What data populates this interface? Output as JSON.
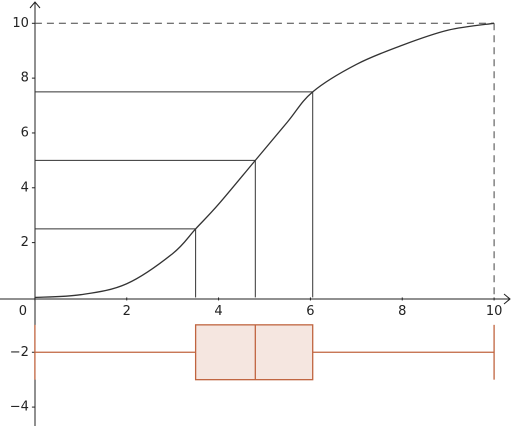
{
  "chart_data": {
    "type": "cumulative-boxplot",
    "xlim": [
      -0.76,
      10.39
    ],
    "ylim": [
      -4.69,
      10.85
    ],
    "xticks": [
      0,
      2,
      4,
      6,
      8,
      10
    ],
    "yticks": [
      {
        "value": -4,
        "label": "−4"
      },
      {
        "value": -2,
        "label": "−2"
      },
      2,
      4,
      6,
      8,
      10
    ],
    "curve": {
      "color": "#333333",
      "x": [
        0,
        1,
        2,
        3,
        3.5,
        4,
        4.8,
        5.5,
        6.05,
        7,
        8,
        9,
        10
      ],
      "y": [
        0,
        0.1,
        0.5,
        1.6,
        2.5,
        3.4,
        5,
        6.4,
        7.5,
        8.5,
        9.2,
        9.75,
        10
      ]
    },
    "quartile_levels": [
      2.5,
      5,
      7.5
    ],
    "boxplot": {
      "min": 0,
      "q1": 3.5,
      "median": 4.8,
      "q3": 6.05,
      "max": 10,
      "y": -2,
      "color": "#c0643f",
      "fill": "#f5e6e0"
    }
  }
}
